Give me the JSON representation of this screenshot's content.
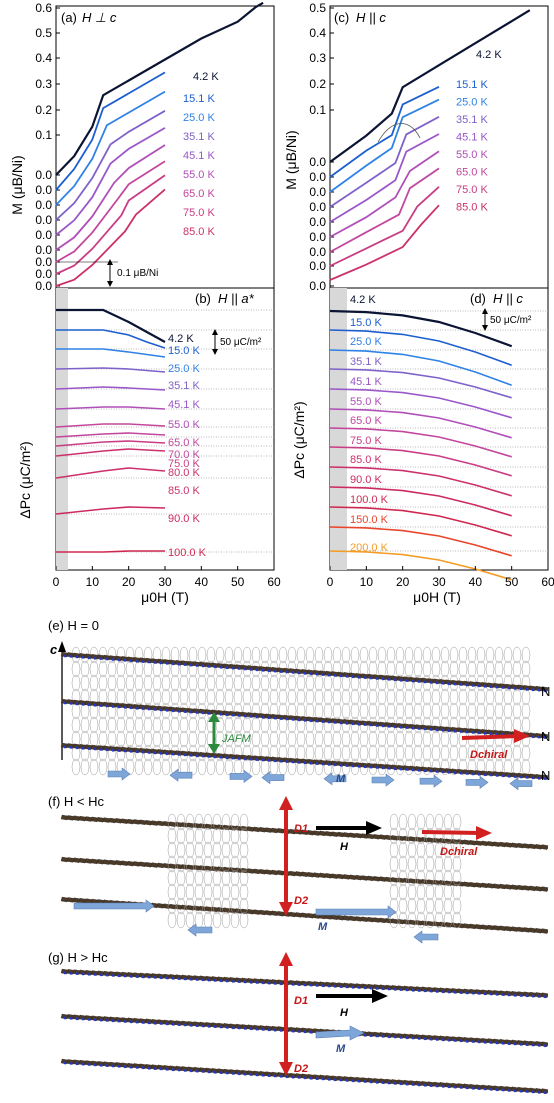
{
  "colors": {
    "k4_2": "#0b1433",
    "k15": "#1c5fcf",
    "k25": "#2f82e6",
    "k35": "#7f62c9",
    "k45": "#9a57c9",
    "k55": "#b14fb9",
    "k65": "#c2479d",
    "k75": "#c93d84",
    "k85": "#cc316b",
    "k90": "#cc2a60",
    "k100": "#cf2850",
    "k150": "#e8452a",
    "k200": "#f39c26",
    "spin_gray": "#6a6a6a",
    "arrow_blue": "#7fa6d9",
    "arrow_red": "#d21f1f",
    "arrow_green": "#2c8a3f",
    "chain_blue": "#2436c8"
  },
  "chart_data": [
    {
      "type": "line",
      "panel": "(a)",
      "title": "H ⊥ c",
      "xlabel": "",
      "ylabel": "M (μB/Ni)",
      "xlim": [
        0,
        60
      ],
      "ylim": [
        0,
        0.6
      ],
      "y_ticks": [
        "0.6",
        "0.5",
        "0.4",
        "0.3",
        "0.2",
        "0.1",
        "0.0",
        "0.0",
        "0.0",
        "0.0",
        "0.0",
        "0.0",
        "0.0",
        "0.0",
        "0.0"
      ],
      "scale_bar": "0.1 μB/Ni",
      "offset_step": 0.023,
      "series": [
        {
          "name": "4.2 K",
          "x": [
            0,
            5,
            10,
            13,
            20,
            30,
            40,
            50,
            55,
            57
          ],
          "y": [
            0.185,
            0.23,
            0.3,
            0.375,
            0.41,
            0.46,
            0.51,
            0.55,
            0.585,
            0.595
          ],
          "offset": 0.185
        },
        {
          "name": "15.1 K",
          "x": [
            0,
            5,
            10,
            13,
            20,
            30
          ],
          "y": [
            0.15,
            0.2,
            0.27,
            0.345,
            0.38,
            0.43
          ],
          "offset": 0.162
        },
        {
          "name": "25.0 K",
          "x": [
            0,
            5,
            10,
            14,
            20,
            30
          ],
          "y": [
            0.13,
            0.175,
            0.24,
            0.32,
            0.35,
            0.4
          ],
          "offset": 0.139
        },
        {
          "name": "35.1 K",
          "x": [
            0,
            5,
            10,
            15,
            20,
            30
          ],
          "y": [
            0.11,
            0.15,
            0.21,
            0.29,
            0.32,
            0.37
          ],
          "offset": 0.116
        },
        {
          "name": "45.1 K",
          "x": [
            0,
            5,
            10,
            15,
            20,
            30
          ],
          "y": [
            0.09,
            0.125,
            0.18,
            0.26,
            0.295,
            0.345
          ],
          "offset": 0.093
        },
        {
          "name": "55.0 K",
          "x": [
            0,
            5,
            10,
            16,
            20,
            30
          ],
          "y": [
            0.07,
            0.1,
            0.15,
            0.23,
            0.265,
            0.32
          ],
          "offset": 0.07
        },
        {
          "name": "65.0 K",
          "x": [
            0,
            5,
            10,
            17,
            20,
            30
          ],
          "y": [
            0.05,
            0.075,
            0.12,
            0.2,
            0.235,
            0.29
          ],
          "offset": 0.047
        },
        {
          "name": "75.0 K",
          "x": [
            0,
            5,
            10,
            18,
            20,
            30
          ],
          "y": [
            0.03,
            0.05,
            0.09,
            0.17,
            0.205,
            0.265
          ],
          "offset": 0.024
        },
        {
          "name": "85.0 K",
          "x": [
            0,
            5,
            10,
            19,
            22,
            30
          ],
          "y": [
            0.01,
            0.025,
            0.06,
            0.14,
            0.18,
            0.24
          ],
          "offset": 0.001
        }
      ]
    },
    {
      "type": "line",
      "panel": "(c)",
      "title": "H || c",
      "xlabel": "",
      "ylabel": "M (μB/Ni)",
      "xlim": [
        0,
        60
      ],
      "ylim": [
        0,
        0.5
      ],
      "y_ticks": [
        "0.5",
        "0.4",
        "0.3",
        "0.2",
        "0.1",
        "0.0",
        "0.0",
        "0.0",
        "0.0",
        "0.0",
        "0.0",
        "0.0",
        "0.0",
        "0.0"
      ],
      "series": [
        {
          "name": "4.2 K",
          "x": [
            0,
            10,
            17,
            20,
            30,
            40,
            50,
            55
          ],
          "y": [
            0.13,
            0.19,
            0.24,
            0.3,
            0.35,
            0.4,
            0.45,
            0.475
          ]
        },
        {
          "name": "15.1 K",
          "x": [
            0,
            10,
            17,
            20,
            30
          ],
          "y": [
            0.105,
            0.165,
            0.2,
            0.27,
            0.31
          ]
        },
        {
          "name": "25.0 K",
          "x": [
            0,
            10,
            17,
            20,
            30
          ],
          "y": [
            0.08,
            0.14,
            0.18,
            0.25,
            0.29
          ]
        },
        {
          "name": "35.1 K",
          "x": [
            0,
            10,
            18,
            21,
            30
          ],
          "y": [
            0.06,
            0.115,
            0.16,
            0.225,
            0.265
          ]
        },
        {
          "name": "45.1 K",
          "x": [
            0,
            10,
            18,
            21,
            30
          ],
          "y": [
            0.04,
            0.09,
            0.135,
            0.2,
            0.24
          ]
        },
        {
          "name": "55.0 K",
          "x": [
            0,
            10,
            18,
            22,
            30
          ],
          "y": [
            0.02,
            0.065,
            0.11,
            0.17,
            0.215
          ]
        },
        {
          "name": "65.0 K",
          "x": [
            0,
            10,
            19,
            22,
            30
          ],
          "y": [
            0.0,
            0.045,
            0.085,
            0.145,
            0.19
          ]
        },
        {
          "name": "75.0 K",
          "x": [
            0,
            10,
            20,
            24,
            30
          ],
          "y": [
            -0.02,
            0.02,
            0.06,
            0.115,
            0.16
          ]
        },
        {
          "name": "85.0 K",
          "x": [
            0,
            10,
            20,
            25,
            30
          ],
          "y": [
            -0.04,
            -0.005,
            0.035,
            0.085,
            0.13
          ]
        }
      ]
    },
    {
      "type": "line",
      "panel": "(b)",
      "title": "H || a*",
      "xlabel": "μ0H (T)",
      "ylabel": "ΔPc (μC/m²)",
      "xlim": [
        0,
        60
      ],
      "x_ticks": [
        "0",
        "10",
        "20",
        "30",
        "40",
        "50",
        "60"
      ],
      "scale_bar": "50 μC/m²",
      "series": [
        {
          "name": "4.2 K",
          "x": [
            0,
            5,
            13,
            20,
            25,
            30
          ],
          "y": [
            0,
            0,
            0,
            -12,
            -22,
            -32
          ]
        },
        {
          "name": "15.0 K",
          "x": [
            0,
            13,
            20,
            25,
            30
          ],
          "y": [
            0,
            0,
            -5,
            -12,
            -18
          ]
        },
        {
          "name": "25.0 K",
          "x": [
            0,
            13,
            20,
            30
          ],
          "y": [
            0,
            0,
            -3,
            -8
          ]
        },
        {
          "name": "35.1 K",
          "x": [
            0,
            13,
            20,
            30
          ],
          "y": [
            0,
            1,
            0,
            -3
          ]
        },
        {
          "name": "45.1 K",
          "x": [
            0,
            13,
            20,
            30
          ],
          "y": [
            0,
            2,
            1,
            -1
          ]
        },
        {
          "name": "55.0 K",
          "x": [
            0,
            13,
            20,
            30
          ],
          "y": [
            0,
            2,
            2,
            0
          ]
        },
        {
          "name": "65.0 K",
          "x": [
            0,
            13,
            20,
            30
          ],
          "y": [
            0,
            3,
            3,
            1
          ]
        },
        {
          "name": "70.0 K",
          "x": [
            0,
            13,
            20,
            30
          ],
          "y": [
            0,
            3,
            4,
            2
          ]
        },
        {
          "name": "75.0 K",
          "x": [
            0,
            13,
            20,
            30
          ],
          "y": [
            0,
            4,
            5,
            3
          ]
        },
        {
          "name": "80.0 K",
          "x": [
            0,
            13,
            20,
            30
          ],
          "y": [
            0,
            5,
            7,
            5
          ]
        },
        {
          "name": "85.0 K",
          "x": [
            0,
            13,
            20,
            30
          ],
          "y": [
            0,
            7,
            10,
            7
          ]
        },
        {
          "name": "90.0 K",
          "x": [
            0,
            13,
            20,
            30
          ],
          "y": [
            0,
            5,
            7,
            6
          ]
        },
        {
          "name": "100.0 K",
          "x": [
            0,
            13,
            20,
            30
          ],
          "y": [
            0,
            0,
            1,
            1
          ]
        }
      ]
    },
    {
      "type": "line",
      "panel": "(d)",
      "title": "H || c",
      "xlabel": "μ0H (T)",
      "ylabel": "ΔPc (μC/m²)",
      "xlim": [
        0,
        60
      ],
      "x_ticks": [
        "0",
        "10",
        "20",
        "30",
        "40",
        "50",
        "60"
      ],
      "scale_bar": "50 μC/m²",
      "series": [
        {
          "name": "4.2 K",
          "x": [
            0,
            10,
            20,
            30,
            40,
            50
          ],
          "y": [
            0,
            -1,
            -4,
            -10,
            -20,
            -32
          ]
        },
        {
          "name": "15.0 K",
          "x": [
            0,
            10,
            20,
            30,
            40,
            50
          ],
          "y": [
            0,
            -1,
            -4,
            -10,
            -20,
            -32
          ]
        },
        {
          "name": "25.0 K",
          "x": [
            0,
            10,
            20,
            30,
            40,
            50
          ],
          "y": [
            0,
            -1,
            -4,
            -10,
            -20,
            -32
          ]
        },
        {
          "name": "35.1 K",
          "x": [
            0,
            10,
            20,
            30,
            40,
            50
          ],
          "y": [
            0,
            -1,
            -4,
            -10,
            -20,
            -32
          ]
        },
        {
          "name": "45.1 K",
          "x": [
            0,
            10,
            20,
            30,
            40,
            50
          ],
          "y": [
            0,
            -1,
            -4,
            -10,
            -20,
            -32
          ]
        },
        {
          "name": "55.0 K",
          "x": [
            0,
            10,
            20,
            30,
            40,
            50
          ],
          "y": [
            0,
            -1,
            -4,
            -10,
            -20,
            -32
          ]
        },
        {
          "name": "65.0 K",
          "x": [
            0,
            10,
            20,
            30,
            40,
            50
          ],
          "y": [
            0,
            -1,
            -4,
            -10,
            -20,
            -32
          ]
        },
        {
          "name": "75.0 K",
          "x": [
            0,
            10,
            20,
            30,
            40,
            50
          ],
          "y": [
            0,
            -1,
            -4,
            -10,
            -20,
            -32
          ]
        },
        {
          "name": "85.0 K",
          "x": [
            0,
            10,
            20,
            30,
            40,
            50
          ],
          "y": [
            0,
            -1,
            -4,
            -10,
            -20,
            -32
          ]
        },
        {
          "name": "90.0 K",
          "x": [
            0,
            10,
            20,
            30,
            40,
            50
          ],
          "y": [
            0,
            -1,
            -4,
            -10,
            -20,
            -32
          ]
        },
        {
          "name": "100.0 K",
          "x": [
            0,
            10,
            20,
            30,
            40,
            50
          ],
          "y": [
            0,
            -1,
            -4,
            -10,
            -20,
            -32
          ]
        },
        {
          "name": "150.0 K",
          "x": [
            0,
            10,
            20,
            30,
            40,
            50
          ],
          "y": [
            0,
            -1,
            -4,
            -10,
            -20,
            -32
          ]
        },
        {
          "name": "200.0 K",
          "x": [
            0,
            10,
            20,
            30,
            40,
            50
          ],
          "y": [
            0,
            -1,
            -4,
            -10,
            -20,
            -32
          ]
        }
      ]
    }
  ],
  "diagram": {
    "e": {
      "label": "(e) H = 0",
      "axis": "c",
      "labels": {
        "jafm": "JAFM",
        "dchiral": "Dchiral",
        "m": "M"
      }
    },
    "f": {
      "label": "(f) H < Hc",
      "labels": {
        "d1": "D1",
        "d2": "D2",
        "h": "H",
        "dchiral": "Dchiral",
        "m": "M"
      }
    },
    "g": {
      "label": "(g) H > Hc",
      "labels": {
        "d1": "D1",
        "d2": "D2",
        "h": "H",
        "m": "M"
      }
    },
    "edge_n": "N"
  }
}
